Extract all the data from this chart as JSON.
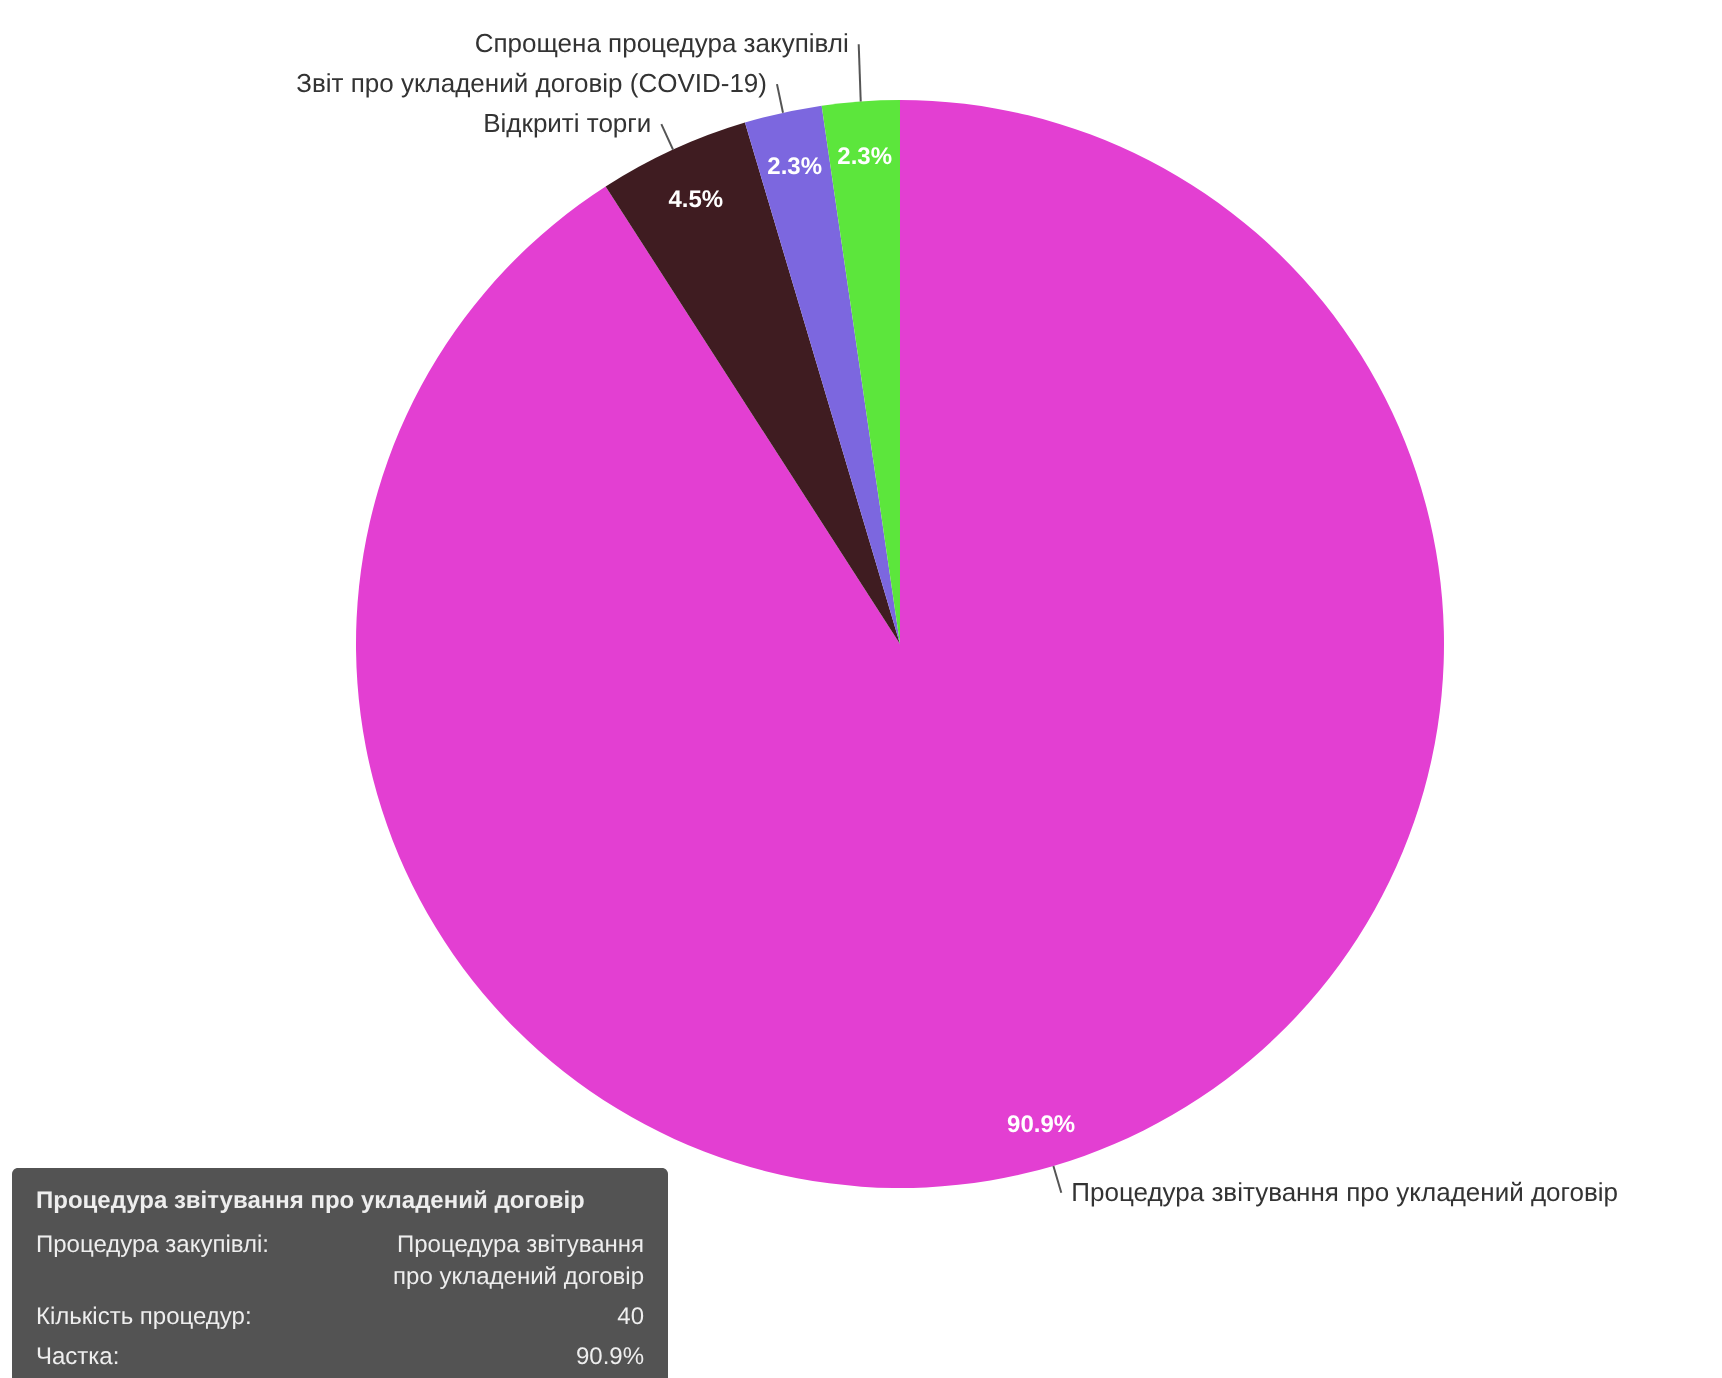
{
  "chart_data": {
    "type": "pie",
    "categories": [
      "Процедура звітування про укладений договір",
      "Відкриті торги",
      "Звіт про укладений договір (COVID-19)",
      "Спрощена процедура закупівлі"
    ],
    "values": [
      90.9,
      4.5,
      2.3,
      2.3
    ],
    "colors": [
      "#e33fd2",
      "#3f1c21",
      "#7c67df",
      "#5ce63c"
    ],
    "value_labels": [
      "90.9%",
      "4.5%",
      "2.3%",
      "2.3%"
    ],
    "annotations": [
      "Процедура звітування про укладений договір",
      "Процедура закупівлі:",
      "Процедура звітування про укладений договір",
      "Кількість процедур:",
      "40",
      "Частка:",
      "90.9%"
    ]
  }
}
